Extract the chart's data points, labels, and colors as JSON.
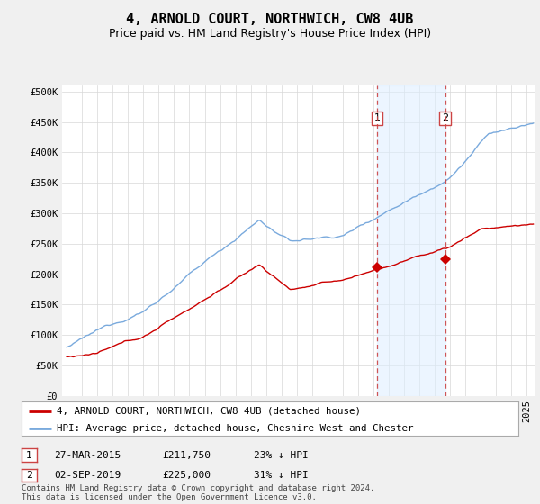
{
  "title": "4, ARNOLD COURT, NORTHWICH, CW8 4UB",
  "subtitle": "Price paid vs. HM Land Registry's House Price Index (HPI)",
  "ylabel_ticks": [
    "£0",
    "£50K",
    "£100K",
    "£150K",
    "£200K",
    "£250K",
    "£300K",
    "£350K",
    "£400K",
    "£450K",
    "£500K"
  ],
  "ytick_vals": [
    0,
    50000,
    100000,
    150000,
    200000,
    250000,
    300000,
    350000,
    400000,
    450000,
    500000
  ],
  "ylim": [
    0,
    510000
  ],
  "xlim_start": 1994.7,
  "xlim_end": 2025.5,
  "red_line_color": "#cc0000",
  "blue_line_color": "#7aaadd",
  "blue_fill_color": "#ddeeff",
  "marker1_date": 2015.23,
  "marker1_value": 211750,
  "marker2_date": 2019.67,
  "marker2_value": 225000,
  "vline_color": "#cc4444",
  "legend_label_red": "4, ARNOLD COURT, NORTHWICH, CW8 4UB (detached house)",
  "legend_label_blue": "HPI: Average price, detached house, Cheshire West and Chester",
  "table_row1": [
    "1",
    "27-MAR-2015",
    "£211,750",
    "23% ↓ HPI"
  ],
  "table_row2": [
    "2",
    "02-SEP-2019",
    "£225,000",
    "31% ↓ HPI"
  ],
  "footnote": "Contains HM Land Registry data © Crown copyright and database right 2024.\nThis data is licensed under the Open Government Licence v3.0.",
  "bg_color": "#f0f0f0",
  "plot_bg_color": "#ffffff",
  "title_fontsize": 11,
  "subtitle_fontsize": 9,
  "tick_fontsize": 7.5,
  "legend_fontsize": 8
}
